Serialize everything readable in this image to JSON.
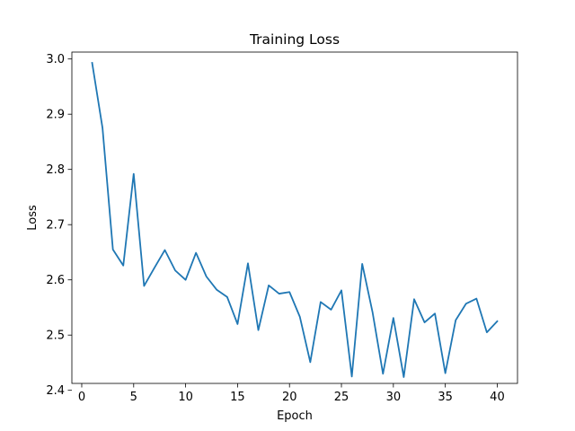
{
  "chart_data": {
    "type": "line",
    "title": "Training Loss",
    "xlabel": "Epoch",
    "ylabel": "Loss",
    "xlim": [
      -0.95,
      41.95
    ],
    "ylim": [
      2.4125,
      3.0125
    ],
    "xticks": [
      0,
      5,
      10,
      15,
      20,
      25,
      30,
      35,
      40
    ],
    "yticks": [
      2.4,
      2.5,
      2.6,
      2.7,
      2.8,
      2.9,
      3.0
    ],
    "ytick_labels": [
      "2.4",
      "2.5",
      "2.6",
      "2.7",
      "2.8",
      "2.9",
      "3.0"
    ],
    "grid": false,
    "legend": "none",
    "series": [
      {
        "color": "#1f77b4",
        "x": [
          1,
          2,
          3,
          4,
          5,
          6,
          7,
          8,
          9,
          10,
          11,
          12,
          13,
          14,
          15,
          16,
          17,
          18,
          19,
          20,
          21,
          22,
          23,
          24,
          25,
          26,
          27,
          28,
          29,
          30,
          31,
          32,
          33,
          34,
          35,
          36,
          37,
          38,
          39,
          40
        ],
        "y": [
          2.993,
          2.875,
          2.655,
          2.626,
          2.792,
          2.589,
          2.622,
          2.654,
          2.617,
          2.6,
          2.649,
          2.606,
          2.582,
          2.569,
          2.52,
          2.63,
          2.509,
          2.59,
          2.575,
          2.578,
          2.533,
          2.451,
          2.56,
          2.546,
          2.581,
          2.425,
          2.629,
          2.541,
          2.43,
          2.531,
          2.424,
          2.565,
          2.523,
          2.539,
          2.431,
          2.527,
          2.557,
          2.566,
          2.505,
          2.525
        ]
      }
    ]
  }
}
